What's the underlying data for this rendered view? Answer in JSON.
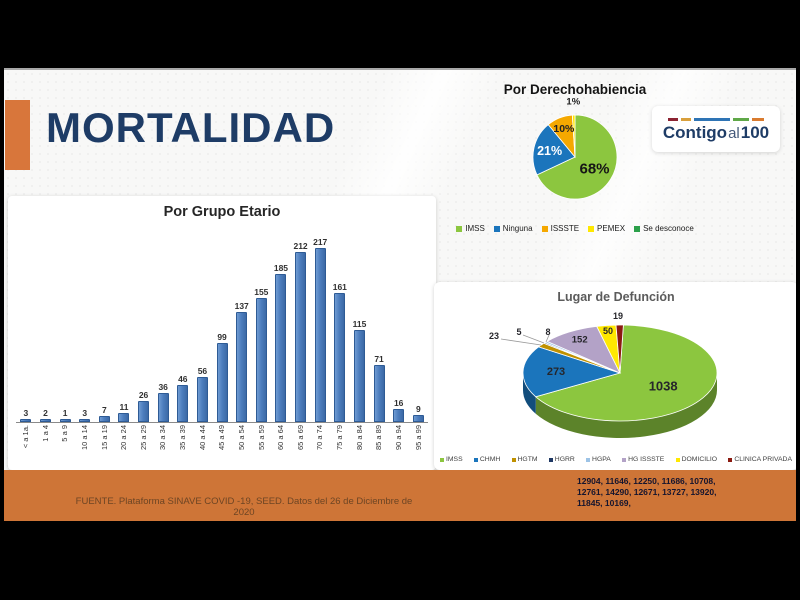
{
  "page": {
    "title": "MORTALIDAD",
    "source_text": "FUENTE. Plataforma SINAVE COVID -19, SEED. Datos del 26 de Diciembre de 2020",
    "footer_numbers": [
      "12904, 11646, 12250, 11686, 10708,",
      "12761, 14290, 12671, 13727, 13920,",
      "11845, 10169,"
    ],
    "logo": {
      "part_bold": "Contigo",
      "part_light": "al",
      "part_number": "100",
      "dash_colors": [
        "#8C2332",
        "#D9A03C",
        "#2E74B5",
        "#5FA848",
        "#D97B2F"
      ]
    },
    "colors": {
      "accent_orange": "#D8763B",
      "footer_orange": "#CE7537",
      "title_navy": "#1E3C66",
      "bar_blue": "#4D7EBE"
    }
  },
  "chart_data": [
    {
      "type": "bar",
      "title": "Por Grupo Etario",
      "categories": [
        "< a 1a.",
        "1 a 4",
        "5 a 9",
        "10 a 14",
        "15 a 19",
        "20 a 24",
        "25 a 29",
        "30 a 34",
        "35 a 39",
        "40 a 44",
        "45 a 49",
        "50 a 54",
        "55 a 59",
        "60 a 64",
        "65 a 69",
        "70 a 74",
        "75 a 79",
        "80 a 84",
        "85 a 89",
        "90 a 94",
        "95 a 99"
      ],
      "values": [
        3,
        2,
        1,
        3,
        7,
        11,
        26,
        36,
        46,
        56,
        99,
        137,
        155,
        185,
        212,
        217,
        161,
        115,
        71,
        16,
        9
      ],
      "xlabel": "",
      "ylabel": "",
      "ylim": [
        0,
        230
      ],
      "grid": false,
      "value_labels": true,
      "bar_color": "#4D7EBE"
    },
    {
      "type": "pie",
      "title": "Por Derechohabiencia",
      "legend_position": "bottom",
      "slices": [
        {
          "name": "IMSS",
          "value": 68,
          "label": "68%",
          "color": "#8CC63F"
        },
        {
          "name": "Ninguna",
          "value": 21,
          "label": "21%",
          "color": "#1B75BC"
        },
        {
          "name": "ISSSTE",
          "value": 10,
          "label": "10%",
          "color": "#F5A800"
        },
        {
          "name": "PEMEX",
          "value": 1,
          "label": "1%",
          "color": "#FFE800"
        },
        {
          "name": "Se desconoce",
          "value": 0,
          "label": "",
          "color": "#2CA04A"
        }
      ]
    },
    {
      "type": "pie3d",
      "title": "Lugar de Defunción",
      "legend_position": "bottom",
      "start_angle_deg": 2,
      "slices": [
        {
          "name": "IMSS",
          "value": 1038,
          "color": "#8CC63F"
        },
        {
          "name": "CHMH",
          "value": 273,
          "color": "#1B75BC"
        },
        {
          "name": "HGTM",
          "value": 23,
          "color": "#C09100"
        },
        {
          "name": "HGRR",
          "value": 5,
          "color": "#1F3864"
        },
        {
          "name": "HGPA",
          "value": 8,
          "color": "#9DC3E6"
        },
        {
          "name": "HG ISSSTE",
          "value": 152,
          "color": "#B3A2C7"
        },
        {
          "name": "DOMICILIO",
          "value": 50,
          "color": "#FFE800"
        },
        {
          "name": "CLINICA PRIVADA",
          "value": 19,
          "color": "#8B1A10"
        }
      ]
    }
  ]
}
